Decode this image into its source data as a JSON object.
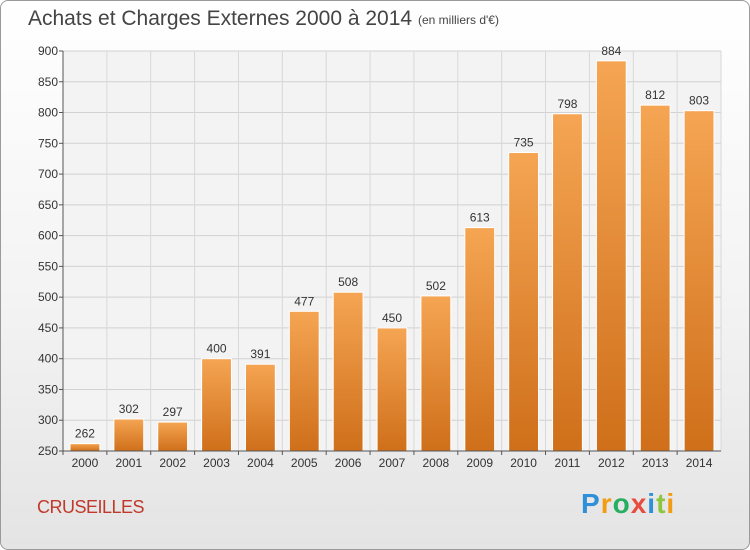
{
  "chart_data": {
    "type": "bar",
    "title": "Achats et Charges Externes 2000 à 2014",
    "subtitle": "(en milliers d'€)",
    "categories": [
      "2000",
      "2001",
      "2002",
      "2003",
      "2004",
      "2005",
      "2006",
      "2007",
      "2008",
      "2009",
      "2010",
      "2011",
      "2012",
      "2013",
      "2014"
    ],
    "values": [
      262,
      302,
      297,
      400,
      391,
      477,
      508,
      450,
      502,
      613,
      735,
      798,
      884,
      812,
      803
    ],
    "ylim": [
      250,
      900
    ],
    "yticks": [
      250,
      300,
      350,
      400,
      450,
      500,
      550,
      600,
      650,
      700,
      750,
      800,
      850,
      900
    ],
    "grid": true,
    "bar_color_top": "#f5a553",
    "bar_color_bottom": "#cf6f1a"
  },
  "city": "CRUSEILLES",
  "logo": {
    "letters": [
      "P",
      "r",
      "o",
      "x",
      "i",
      "t",
      "i"
    ],
    "colors": [
      "#2f8fd8",
      "#f39c12",
      "#27ae60",
      "#e74c3c",
      "#2f8fd8",
      "#8cc63f",
      "#f39c12"
    ]
  }
}
